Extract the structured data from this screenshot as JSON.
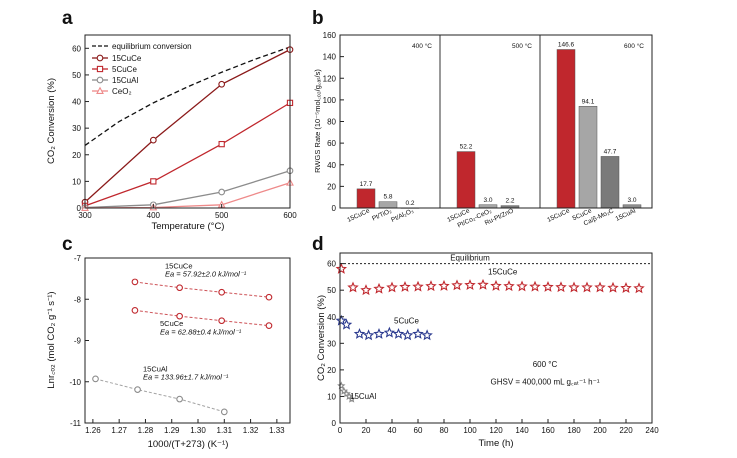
{
  "panels": {
    "a": "a",
    "b": "b",
    "c": "c",
    "d": "d"
  },
  "colors": {
    "dark_red": "#8b1a1a",
    "red": "#c0272d",
    "gray": "#8c8c8c",
    "pink": "#ee8a8a",
    "navy": "#2b3a8f",
    "bar_gray": "#a6a6a6",
    "bar_dgray": "#7a7a7a"
  },
  "chart_data": [
    {
      "type": "line",
      "xlabel": "Temperature (°C)",
      "ylabel": "CO₂ Conversion (%)",
      "x": [
        300,
        400,
        500,
        600
      ],
      "xlim": [
        300,
        600
      ],
      "ylim": [
        0,
        65
      ],
      "xticks": [
        "300",
        "400",
        "500",
        "600"
      ],
      "yticks": [
        "0",
        "10",
        "20",
        "30",
        "40",
        "50",
        "60"
      ],
      "equilibrium": {
        "name": "equilibrium conversion",
        "x": [
          300,
          350,
          400,
          450,
          500,
          550,
          600
        ],
        "values": [
          23.5,
          32.5,
          39.5,
          45.5,
          51,
          56,
          60.5
        ]
      },
      "series": [
        {
          "name": "15CuCe",
          "values": [
            2.2,
            25.5,
            46.5,
            59.5
          ],
          "color": "#8b1a1a",
          "marker": "circle"
        },
        {
          "name": "5CuCe",
          "values": [
            0.8,
            10,
            24,
            39.5
          ],
          "color": "#c0272d",
          "marker": "square"
        },
        {
          "name": "15CuAl",
          "values": [
            0.2,
            1.2,
            6,
            14
          ],
          "color": "#8c8c8c",
          "marker": "circle"
        },
        {
          "name": "CeO₂",
          "values": [
            0,
            0.2,
            1.2,
            9.5
          ],
          "color": "#ee8a8a",
          "marker": "triangle"
        }
      ]
    },
    {
      "type": "bar",
      "ylabel": "RWGS Rate (10⁻⁵mol꜀ₒ₂/g꜀ₐₜ/s)",
      "ylim": [
        0,
        160
      ],
      "yticks": [
        "0",
        "20",
        "40",
        "60",
        "80",
        "100",
        "120",
        "140",
        "160"
      ],
      "groups": [
        {
          "temp": "400 °C",
          "bars": [
            {
              "label": "15CuCe",
              "value": 17.7,
              "text": "17.7",
              "color": "#c0272d"
            },
            {
              "label": "Pt/TiO₂",
              "value": 5.8,
              "text": "5.8",
              "color": "#a6a6a6"
            },
            {
              "label": "Pt/Al₂O₃",
              "value": 0.2,
              "text": "0.2",
              "color": "#7a7a7a"
            }
          ]
        },
        {
          "temp": "500 °C",
          "bars": [
            {
              "label": "15CuCe",
              "value": 52.2,
              "text": "52.2",
              "color": "#c0272d"
            },
            {
              "label": "Pt/Co₂-CeO₂",
              "value": 3.0,
              "text": "3.0",
              "color": "#a6a6a6"
            },
            {
              "label": "Ru-Pt/ZnO",
              "value": 2.2,
              "text": "2.2",
              "color": "#7a7a7a"
            }
          ]
        },
        {
          "temp": "600 °C",
          "bars": [
            {
              "label": "15CuCe",
              "value": 146.6,
              "text": "146.6",
              "color": "#c0272d"
            },
            {
              "label": "5CuCe",
              "value": 94.1,
              "text": "94.1",
              "color": "#a6a6a6"
            },
            {
              "label": "Ca/β-Mo₂C",
              "value": 47.7,
              "text": "47.7",
              "color": "#7a7a7a"
            },
            {
              "label": "15CuAl",
              "value": 3.0,
              "text": "3.0",
              "color": "#8c8c8c"
            }
          ]
        }
      ]
    },
    {
      "type": "scatter",
      "xlabel": "1000/(T+273) (K⁻¹)",
      "ylabel": "Lnr꜀ₒ₂ (mol CO₂ g⁻¹ s⁻¹)",
      "xlim": [
        1.257,
        1.335
      ],
      "ylim": [
        -11,
        -7
      ],
      "xticks": [
        "1.26",
        "1.27",
        "1.28",
        "1.29",
        "1.30",
        "1.31",
        "1.32",
        "1.33"
      ],
      "yticks": [
        "-7",
        "-8",
        "-9",
        "-10",
        "-11"
      ],
      "series": [
        {
          "name": "15CuCe",
          "x": [
            1.276,
            1.293,
            1.309,
            1.327
          ],
          "values": [
            -7.58,
            -7.72,
            -7.83,
            -7.95
          ],
          "color": "#c0272d",
          "label": "15CuCe",
          "ea": "Ea = 57.92±2.0 kJ/mol⁻¹"
        },
        {
          "name": "5CuCe",
          "x": [
            1.276,
            1.293,
            1.309,
            1.327
          ],
          "values": [
            -8.27,
            -8.41,
            -8.52,
            -8.64
          ],
          "color": "#c0272d",
          "label": "5CuCe",
          "ea": "Ea = 62.88±0.4 kJ/mol⁻¹"
        },
        {
          "name": "15CuAl",
          "x": [
            1.261,
            1.277,
            1.293,
            1.31
          ],
          "values": [
            -9.93,
            -10.19,
            -10.42,
            -10.73
          ],
          "color": "#8c8c8c",
          "label": "15CuAl",
          "ea": "Ea = 133.96±1.7 kJ/mol⁻¹"
        }
      ]
    },
    {
      "type": "scatter",
      "xlabel": "Time (h)",
      "ylabel": "CO₂ Conversion (%)",
      "xlim": [
        0,
        240
      ],
      "ylim": [
        0,
        64
      ],
      "xticks": [
        "0",
        "20",
        "40",
        "60",
        "80",
        "100",
        "120",
        "140",
        "160",
        "180",
        "200",
        "220",
        "240"
      ],
      "yticks": [
        "0",
        "10",
        "20",
        "30",
        "40",
        "50",
        "60"
      ],
      "equilibrium": {
        "name": "Equilibrium",
        "value": 60
      },
      "conditions": [
        "600 °C",
        "GHSV = 400,000 mL g꜀ₐₜ⁻¹ h⁻¹"
      ],
      "series": [
        {
          "name": "15CuCe",
          "color": "#c0272d",
          "x": [
            1,
            10,
            20,
            30,
            40,
            50,
            60,
            70,
            80,
            90,
            100,
            110,
            120,
            130,
            140,
            150,
            160,
            170,
            180,
            190,
            200,
            210,
            220,
            230
          ],
          "values": [
            58,
            51,
            50,
            50.5,
            51,
            51.2,
            51.3,
            51.5,
            51.6,
            51.8,
            51.9,
            52,
            51.6,
            51.5,
            51.4,
            51.3,
            51.2,
            51.1,
            51,
            51,
            51,
            50.9,
            50.8,
            50.7
          ]
        },
        {
          "name": "5CuCe",
          "color": "#2b3a8f",
          "x": [
            1,
            5,
            15,
            22,
            30,
            38,
            45,
            52,
            60,
            67
          ],
          "values": [
            38.5,
            37,
            33.5,
            33,
            33.5,
            34,
            33.5,
            33,
            33.5,
            33
          ]
        },
        {
          "name": "15CuAl",
          "color": "#8c8c8c",
          "x": [
            1,
            3,
            5,
            7,
            9
          ],
          "values": [
            14,
            12,
            11,
            10,
            9
          ]
        }
      ]
    }
  ]
}
